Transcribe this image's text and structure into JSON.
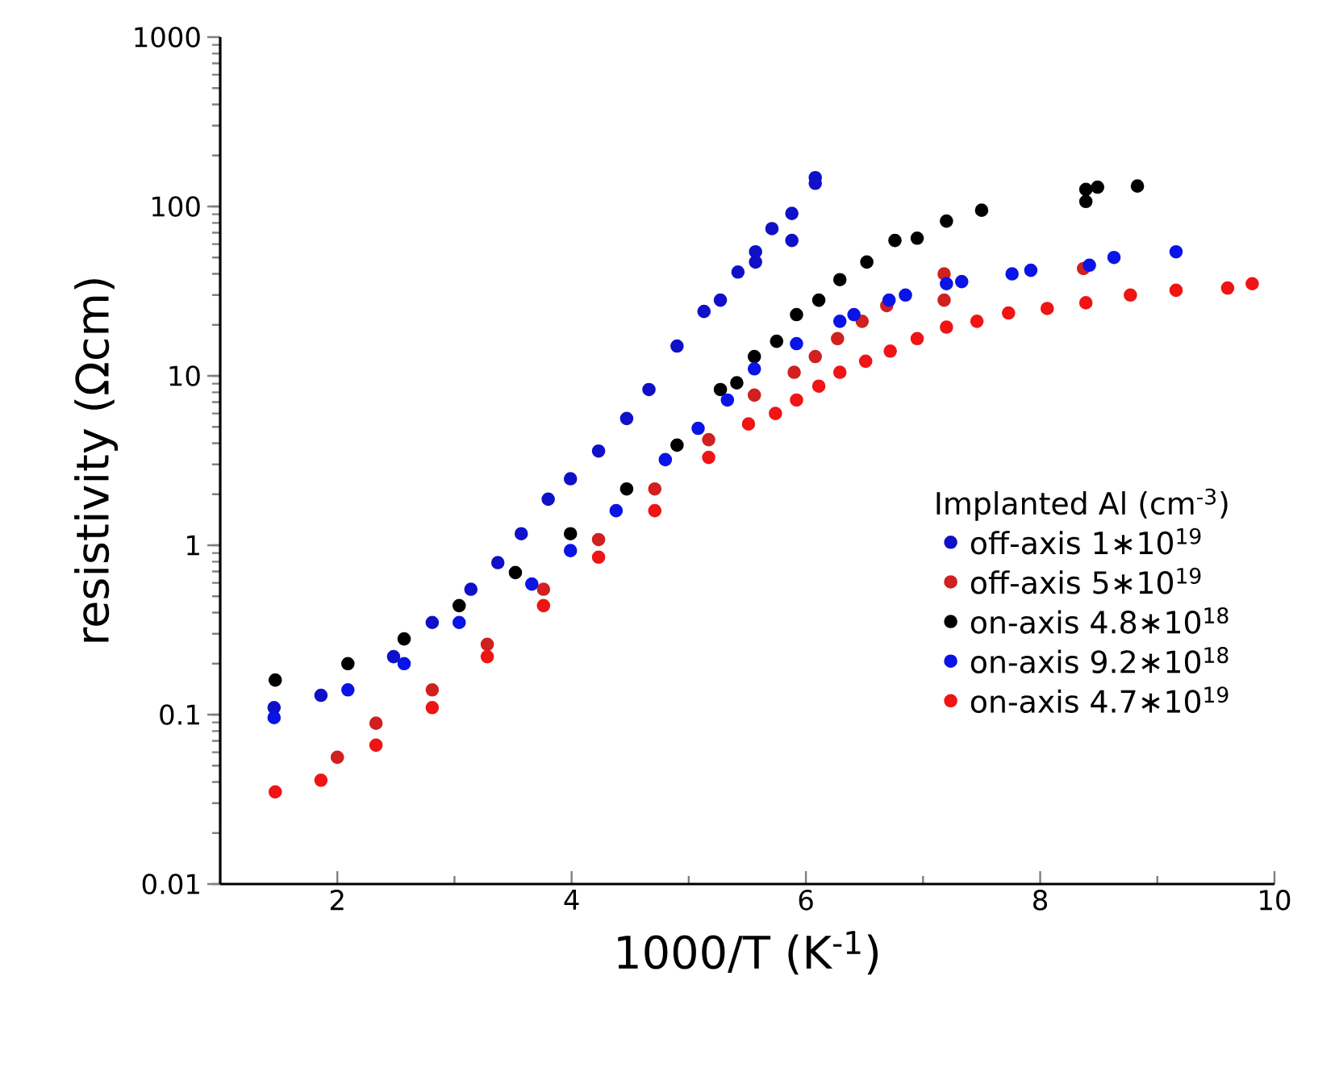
{
  "chart_data": {
    "type": "scatter",
    "xlabel": "1000/T (K$^{-1}$)",
    "ylabel": "resistivity (Ωcm)",
    "legend_title": "Implanted Al (cm$^{-3}$)",
    "xlim": [
      1,
      10
    ],
    "xticks": [
      2,
      4,
      6,
      8,
      10
    ],
    "ylim": [
      0.01,
      1000
    ],
    "yticks": [
      0.01,
      0.1,
      1,
      10,
      100,
      1000
    ],
    "log": "y",
    "legend": "right",
    "grid": false,
    "series": [
      {
        "name": "off-axis 1∗10$^{19}$",
        "color": "#1010c8",
        "x": [
          1.46,
          1.86,
          2.48,
          2.81,
          3.14,
          3.37,
          3.57,
          3.8,
          3.99,
          4.23,
          4.47,
          4.66,
          4.9,
          5.13,
          5.27,
          5.42,
          5.57,
          5.57,
          5.71,
          5.88,
          5.88,
          6.08,
          6.08
        ],
        "values": [
          0.11,
          0.13,
          0.22,
          0.35,
          0.55,
          0.79,
          1.17,
          1.87,
          2.47,
          3.6,
          5.6,
          8.3,
          15,
          24,
          28,
          41,
          54,
          47,
          74,
          91,
          63,
          148,
          137
        ]
      },
      {
        "name": "off-axis 5∗10$^{19}$",
        "color": "#d02020",
        "x": [
          2.0,
          2.33,
          2.81,
          3.28,
          3.76,
          4.23,
          4.71,
          5.17,
          5.56,
          5.9,
          6.08,
          6.27,
          6.48,
          6.69,
          7.18,
          7.18,
          8.37
        ],
        "values": [
          0.056,
          0.089,
          0.14,
          0.26,
          0.55,
          1.08,
          2.15,
          4.2,
          7.7,
          10.5,
          13,
          16.6,
          21,
          26,
          40,
          28,
          43
        ]
      },
      {
        "name": "on-axis 4.8∗10$^{18}$",
        "color": "#000000",
        "x": [
          1.47,
          2.09,
          2.57,
          3.04,
          3.52,
          3.99,
          4.47,
          4.9,
          5.27,
          5.41,
          5.56,
          5.75,
          5.92,
          6.11,
          6.29,
          6.52,
          6.76,
          6.95,
          7.2,
          7.5,
          8.39,
          8.39,
          8.49,
          8.83
        ],
        "values": [
          0.16,
          0.2,
          0.28,
          0.44,
          0.69,
          1.17,
          2.15,
          3.9,
          8.3,
          9.1,
          13,
          16,
          23,
          28,
          37,
          47,
          63,
          65,
          82,
          95,
          126,
          107,
          130,
          132
        ]
      },
      {
        "name": "on-axis 9.2∗10$^{18}$",
        "color": "#0a14e6",
        "x": [
          1.46,
          2.09,
          2.57,
          3.04,
          3.66,
          3.99,
          4.38,
          4.8,
          5.08,
          5.33,
          5.56,
          5.92,
          6.29,
          6.41,
          6.71,
          6.85,
          7.2,
          7.33,
          7.76,
          7.92,
          8.42,
          8.63,
          9.16
        ],
        "values": [
          0.096,
          0.14,
          0.2,
          0.35,
          0.59,
          0.93,
          1.6,
          3.2,
          4.9,
          7.2,
          11,
          15.5,
          21,
          23,
          28,
          30,
          35,
          36,
          40,
          42,
          45,
          50,
          54
        ]
      },
      {
        "name": "on-axis 4.7∗10$^{19}$",
        "color": "#f01414",
        "x": [
          1.47,
          1.86,
          2.33,
          2.81,
          3.28,
          3.76,
          4.23,
          4.71,
          5.17,
          5.51,
          5.74,
          5.92,
          6.11,
          6.29,
          6.51,
          6.72,
          6.95,
          7.2,
          7.46,
          7.73,
          8.06,
          8.39,
          8.77,
          9.16,
          9.6,
          9.81
        ],
        "values": [
          0.035,
          0.041,
          0.066,
          0.11,
          0.22,
          0.44,
          0.85,
          1.6,
          3.3,
          5.2,
          6.0,
          7.2,
          8.7,
          10.5,
          12.2,
          14,
          16.6,
          19.4,
          21,
          23.5,
          25,
          27,
          30,
          32,
          33,
          35
        ]
      }
    ]
  }
}
